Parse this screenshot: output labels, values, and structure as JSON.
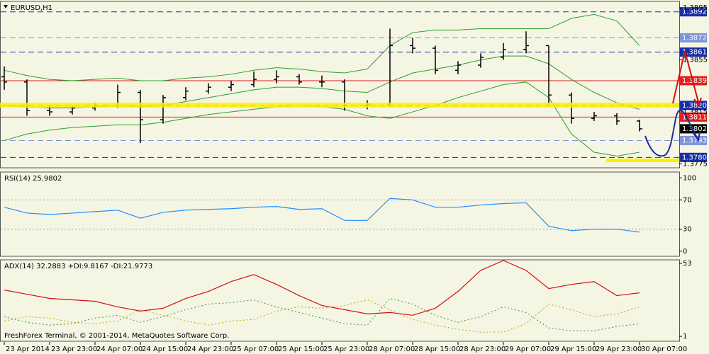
{
  "chart_data": [
    {
      "type": "ohlc",
      "title": "EURUSD,H1",
      "color": "#000000",
      "categories": [
        "23 Apr 2014",
        null,
        "23 Apr 23:00",
        null,
        "24 Apr 07:00",
        null,
        "24 Apr 15:00",
        null,
        "24 Apr 23:00",
        null,
        "25 Apr 07:00",
        null,
        "25 Apr 15:00",
        null,
        "25 Apr 23:00",
        null,
        "28 Apr 07:00",
        null,
        "28 Apr 15:00",
        null,
        "28 Apr 23:00",
        null,
        "29 Apr 07:00",
        null,
        "29 Apr 15:00",
        null,
        "29 Apr 23:00",
        null,
        "30 Apr 07:00"
      ],
      "open": [
        1.3842,
        1.3838,
        1.3816,
        1.3815,
        1.3818,
        1.382,
        1.383,
        1.3809,
        1.3826,
        1.3831,
        1.3834,
        1.3836,
        1.384,
        1.3842,
        1.3838,
        1.3838,
        1.382,
        1.3821,
        1.3866,
        1.3864,
        1.3847,
        1.3851,
        1.3857,
        1.3863,
        1.3866,
        1.3828,
        1.381,
        1.3812,
        1.3808
      ],
      "high": [
        1.385,
        1.384,
        1.382,
        1.382,
        1.3822,
        1.3836,
        1.3832,
        1.3828,
        1.3834,
        1.3837,
        1.3839,
        1.3846,
        1.3847,
        1.3844,
        1.3843,
        1.384,
        1.3824,
        1.3879,
        1.3872,
        1.3866,
        1.3854,
        1.386,
        1.3868,
        1.3877,
        1.3866,
        1.383,
        1.3815,
        1.3814,
        1.3809
      ],
      "low": [
        1.3832,
        1.3812,
        1.3812,
        1.3813,
        1.3816,
        1.3818,
        1.3791,
        1.3806,
        1.3824,
        1.3829,
        1.3831,
        1.3834,
        1.3837,
        1.3836,
        1.3834,
        1.3816,
        1.3817,
        1.3819,
        1.386,
        1.3844,
        1.3844,
        1.3849,
        1.3855,
        1.386,
        1.382,
        1.3806,
        1.3808,
        1.3805,
        1.38
      ],
      "close": [
        1.3838,
        1.3816,
        1.3815,
        1.3818,
        1.382,
        1.383,
        1.3809,
        1.3826,
        1.3831,
        1.3834,
        1.3836,
        1.384,
        1.3842,
        1.3838,
        1.3838,
        1.382,
        1.3821,
        1.3866,
        1.3864,
        1.3847,
        1.3851,
        1.3857,
        1.3863,
        1.3866,
        1.3828,
        1.381,
        1.3812,
        1.3808,
        1.3802
      ],
      "bands": {
        "color": "#2e9e2e",
        "upper": [
          1.3847,
          1.3843,
          1.384,
          1.3839,
          1.384,
          1.3841,
          1.3839,
          1.3839,
          1.3841,
          1.3842,
          1.3844,
          1.3847,
          1.3849,
          1.3848,
          1.3846,
          1.3845,
          1.3848,
          1.3866,
          1.3876,
          1.3878,
          1.3878,
          1.3879,
          1.3879,
          1.3879,
          1.3879,
          1.3887,
          1.389,
          1.3885,
          1.3866
        ],
        "middle": [
          1.382,
          1.3819,
          1.3818,
          1.3818,
          1.3819,
          1.382,
          1.3819,
          1.382,
          1.3823,
          1.3826,
          1.3829,
          1.3832,
          1.3834,
          1.3834,
          1.3833,
          1.3831,
          1.383,
          1.3838,
          1.3845,
          1.3848,
          1.3851,
          1.3855,
          1.3858,
          1.3858,
          1.3852,
          1.384,
          1.383,
          1.3822,
          1.3817
        ],
        "lower": [
          1.3793,
          1.3798,
          1.3801,
          1.3803,
          1.3804,
          1.3805,
          1.3805,
          1.3807,
          1.381,
          1.3813,
          1.3815,
          1.3817,
          1.3819,
          1.382,
          1.3819,
          1.3817,
          1.3812,
          1.381,
          1.3815,
          1.382,
          1.3826,
          1.3831,
          1.3836,
          1.3838,
          1.3826,
          1.3798,
          1.3784,
          1.3781,
          1.3784
        ]
      },
      "ylim": [
        1.3772,
        1.39
      ],
      "yticks": [
        1.3895,
        1.3855,
        1.3815,
        1.3775
      ],
      "levels": [
        {
          "value": 1.3892,
          "color": "#1a2fa0",
          "line": "dash",
          "box": true
        },
        {
          "value": 1.3872,
          "color": "#7f93d8",
          "line": "dash",
          "box": true
        },
        {
          "value": 1.3861,
          "color": "#1a2fa0",
          "line": "dash",
          "box": true
        },
        {
          "value": 1.3839,
          "color": "#e02020",
          "line": "solid",
          "box": true
        },
        {
          "value": 1.382,
          "label": "1.3820",
          "color": "#1a2fa0",
          "line": "dash",
          "box": true
        },
        {
          "value": 1.3811,
          "color": "#e02020",
          "line": "solid",
          "box": true
        },
        {
          "value": 1.3802,
          "color": "#000000",
          "line": "none",
          "box": true
        },
        {
          "value": 1.3793,
          "color": "#7f93d8",
          "line": "dash",
          "box": true
        },
        {
          "value": 1.378,
          "label": "1.3780",
          "color": "#1a2fa0",
          "line": "dash",
          "box": true
        }
      ]
    },
    {
      "type": "line",
      "title": "RSI(14) 25.9802",
      "color": "#1e90ff",
      "values": [
        60,
        52,
        50,
        52,
        54,
        56,
        45,
        53,
        56,
        57,
        58,
        60,
        61,
        57,
        58,
        42,
        42,
        72,
        70,
        60,
        60,
        63,
        65,
        66,
        34,
        28,
        30,
        30,
        26
      ],
      "ylim": [
        -7,
        108
      ],
      "yticks": [
        100,
        70,
        30,
        0
      ],
      "levels": [
        {
          "value": 70,
          "color": "#a0a0a0",
          "line": "dot",
          "box": false
        },
        {
          "value": 30,
          "color": "#a0a0a0",
          "line": "dot",
          "box": false
        }
      ]
    },
    {
      "type": "line",
      "title": "ADX(14) 32.2883 +DI:9.8167 -DI:21.9773",
      "annotation": "FreshForex Terminal, © 2001-2014, MetaQuotes Software Corp.",
      "series": [
        {
          "color": "#d01010",
          "dash": "solid",
          "values": [
            34,
            31,
            28,
            27,
            26,
            22,
            19,
            21,
            28,
            33,
            40,
            45,
            38,
            30,
            23,
            20,
            17,
            18,
            16,
            21,
            33,
            48,
            55,
            48,
            35,
            38,
            40,
            30,
            32
          ]
        },
        {
          "color": "#3a9a3a",
          "dash": "dot",
          "values": [
            15,
            11,
            9,
            10,
            14,
            16,
            11,
            15,
            20,
            24,
            25,
            27,
            22,
            18,
            14,
            10,
            9,
            28,
            24,
            16,
            11,
            15,
            22,
            18,
            7,
            5,
            5,
            8,
            10
          ]
        },
        {
          "color": "#c0a800",
          "dash": "dot",
          "values": [
            12,
            15,
            14,
            11,
            10,
            12,
            20,
            16,
            12,
            9,
            12,
            13,
            19,
            22,
            21,
            23,
            27,
            20,
            13,
            9,
            6,
            4,
            4,
            10,
            24,
            20,
            15,
            17,
            22
          ]
        }
      ],
      "ylim": [
        -2.5,
        55.5
      ],
      "yticks": [
        53,
        1
      ]
    }
  ]
}
